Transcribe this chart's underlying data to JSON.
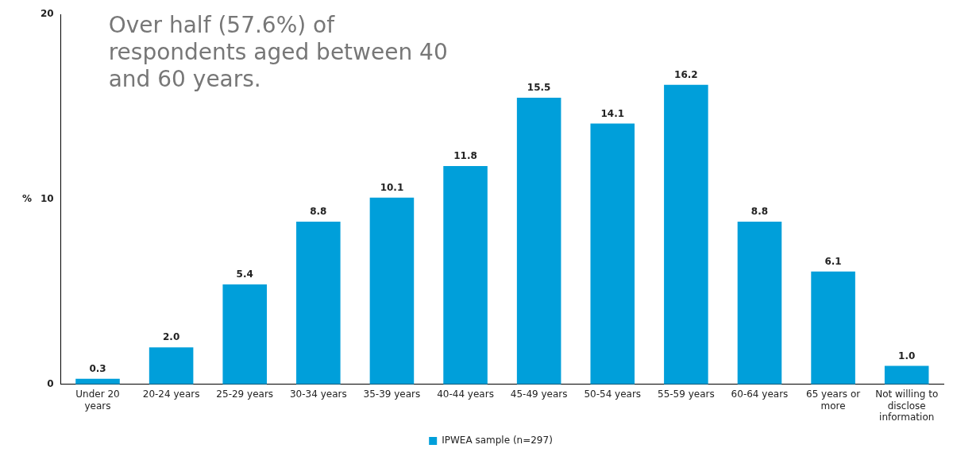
{
  "chart_data": {
    "type": "bar",
    "ylabel": "%",
    "categories": [
      "Under 20 years",
      "20-24 years",
      "25-29 years",
      "30-34 years",
      "35-39 years",
      "40-44 years",
      "45-49 years",
      "50-54 years",
      "55-59 years",
      "60-64 years",
      "65 years or more",
      "Not willing to disclose information"
    ],
    "series": [
      {
        "name": "IPWEA sample (n=297)",
        "color": "#009fda",
        "values": [
          0.3,
          2.0,
          5.4,
          8.8,
          10.1,
          11.8,
          15.5,
          14.1,
          16.2,
          8.8,
          6.1,
          1.0
        ],
        "value_labels": [
          "0.3",
          "2.0",
          "5.4",
          "8.8",
          "10.1",
          "11.8",
          "15.5",
          "14.1",
          "16.2",
          "8.8",
          "6.1",
          "1.0"
        ]
      }
    ],
    "ylim": [
      0,
      20
    ],
    "yticks": [
      0,
      10,
      20
    ],
    "grid": false,
    "legend": "bottom",
    "annotations": [
      "Over half (57.6%) of respondents aged between 40 and 60 years."
    ]
  }
}
